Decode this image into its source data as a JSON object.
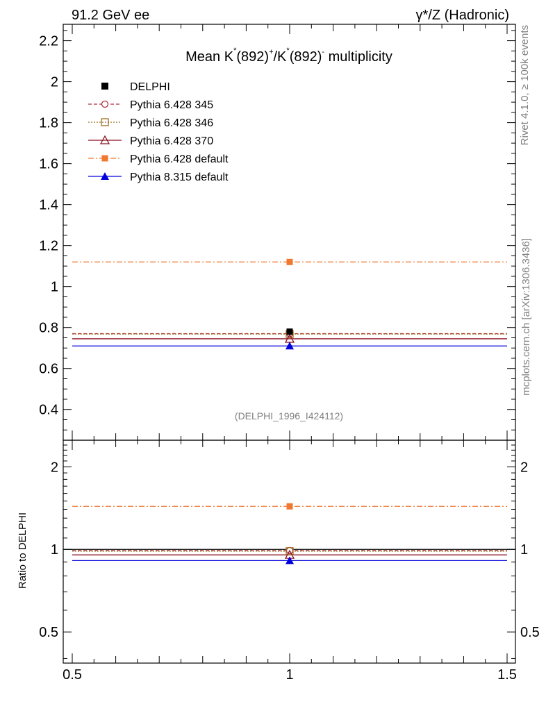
{
  "header": {
    "left": "91.2 GeV ee",
    "right": "γ*/Z (Hadronic)"
  },
  "side_texts": {
    "rivet": "Rivet 4.1.0, ≥ 100k events",
    "mcplots": "mcplots.cern.ch [arXiv:1306.3436]"
  },
  "analysis_id": "(DELPHI_1996_I424112)",
  "chart_data": {
    "type": "scatter",
    "title": "Mean K*(892)+/K*(892)- multiplicity",
    "title_parts": {
      "a": "Mean K",
      "sup1": "*",
      "b": "(892)",
      "sup2": "+",
      "c": "/K",
      "sup3": "*",
      "d": "(892)",
      "sup4": "-",
      "e": " multiplicity"
    },
    "xlim": [
      0.5,
      1.5
    ],
    "x_ticks": [
      "0.5",
      "1",
      "1.5"
    ],
    "main": {
      "ylim": [
        0.25,
        2.28
      ],
      "y_ticks": [
        "0.4",
        "0.6",
        "0.8",
        "1",
        "1.2",
        "1.4",
        "1.6",
        "1.8",
        "2",
        "2.2"
      ]
    },
    "ratio": {
      "ylabel": "Ratio to DELPHI",
      "ylim": [
        0.385,
        2.5
      ],
      "y_ticks": [
        "0.5",
        "1",
        "2"
      ]
    },
    "data": {
      "name": "DELPHI",
      "x": 1.0,
      "y": 0.78,
      "color": "#000000"
    },
    "series": [
      {
        "name": "Pythia 6.428 345",
        "x": 1.0,
        "y": 0.77,
        "ratio": 0.99,
        "color": "#b03040",
        "dash": "5,3",
        "marker": "circle-open"
      },
      {
        "name": "Pythia 6.428 346",
        "x": 1.0,
        "y": 0.768,
        "ratio": 0.985,
        "color": "#9a7020",
        "dash": "2,2",
        "marker": "square-open"
      },
      {
        "name": "Pythia 6.428 370",
        "x": 1.0,
        "y": 0.745,
        "ratio": 0.955,
        "color": "#8b1020",
        "dash": "",
        "marker": "triangle-open"
      },
      {
        "name": "Pythia 6.428 default",
        "x": 1.0,
        "y": 1.12,
        "ratio": 1.435,
        "color": "#f07830",
        "dash": "8,3,2,3",
        "marker": "square-filled"
      },
      {
        "name": "Pythia 8.315 default",
        "x": 1.0,
        "y": 0.71,
        "ratio": 0.91,
        "color": "#0000dd",
        "dash": "",
        "marker": "triangle-filled"
      }
    ]
  }
}
